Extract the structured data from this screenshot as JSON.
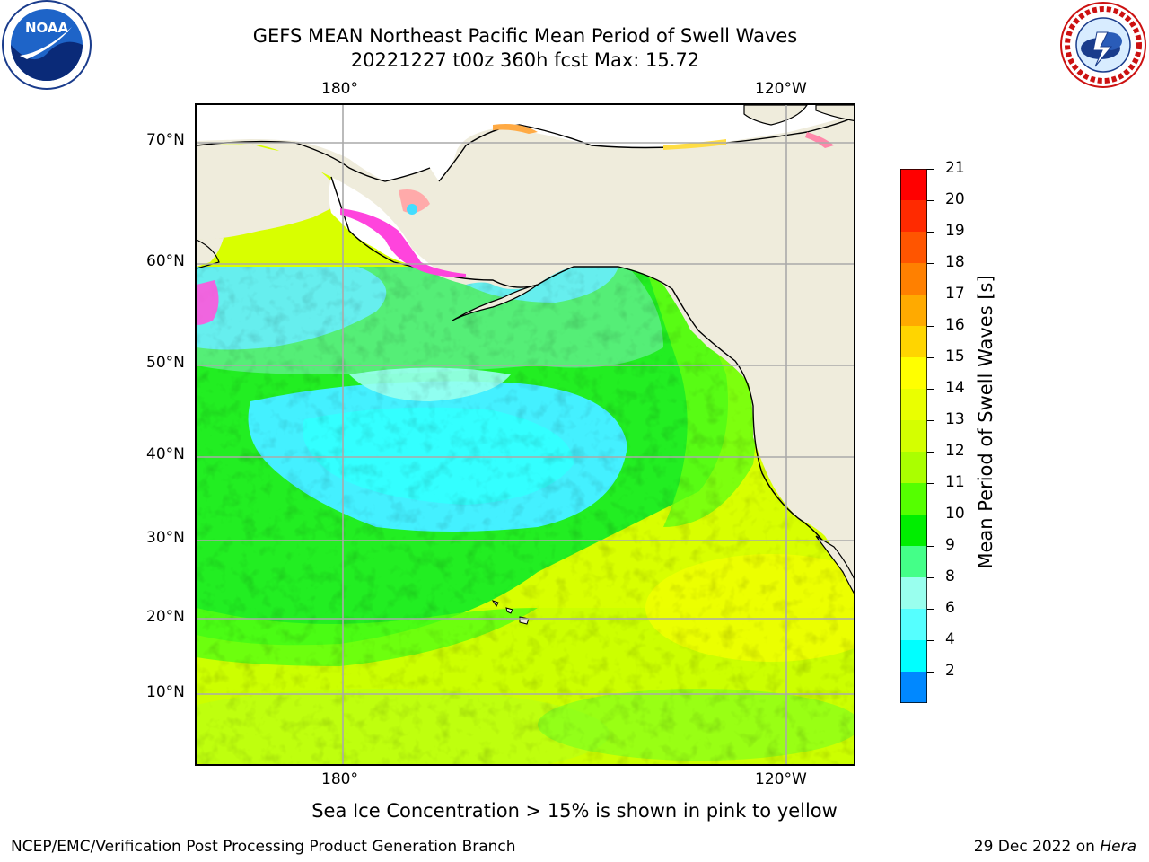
{
  "header": {
    "title_line1": "GEFS MEAN Northeast Pacific Mean Period of Swell Waves",
    "title_line2": "20221227 t00z 360h fcst   Max: 15.72"
  },
  "logos": {
    "left": {
      "name": "noaa-logo",
      "text": "NOAA"
    },
    "right": {
      "name": "nws-logo",
      "text": "NATIONAL WEATHER SERVICE"
    }
  },
  "map": {
    "lon_labels_top": [
      "180°",
      "120°W"
    ],
    "lon_labels_bottom": [
      "180°",
      "120°W"
    ],
    "lat_labels": [
      "70°N",
      "60°N",
      "50°N",
      "40°N",
      "30°N",
      "20°N",
      "10°N"
    ],
    "colors": {
      "land": "#efecdc",
      "ice_pink": "#ff44dd",
      "ice_orange": "#ffb060"
    }
  },
  "colorbar": {
    "label": "Mean Period of Swell Waves [s]",
    "ticks": [
      "21",
      "20",
      "19",
      "18",
      "17",
      "16",
      "15",
      "14",
      "13",
      "12",
      "11",
      "10",
      "9",
      "8",
      "6",
      "4",
      "2"
    ],
    "colors": [
      "#ff0000",
      "#ff2a00",
      "#ff5500",
      "#ff8000",
      "#ffaa00",
      "#ffd500",
      "#ffff00",
      "#eaff00",
      "#d4ff00",
      "#aaff00",
      "#55ff00",
      "#00ee00",
      "#44ff88",
      "#99ffee",
      "#55ffff",
      "#00ffff",
      "#0088ff",
      "#0055ff"
    ],
    "extend_color": "#0000ff"
  },
  "note": "Sea Ice Concentration > 15% is shown in pink to yellow",
  "footer": {
    "left": "NCEP/EMC/Verification Post Processing Product Generation Branch",
    "right_date": "29 Dec 2022 on ",
    "right_machine": "Hera"
  }
}
